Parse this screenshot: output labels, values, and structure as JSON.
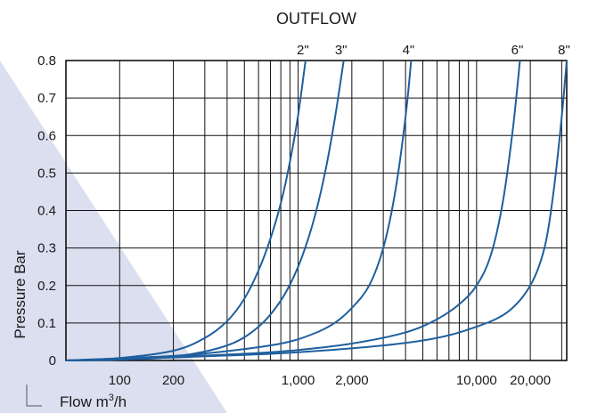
{
  "chart_data": {
    "type": "line",
    "title": "OUTFLOW",
    "ylabel": "Pressure Bar",
    "xlabel_prefix": "Flow  m",
    "xlabel_sup": "3",
    "xlabel_suffix": "/h",
    "x_scale": "log",
    "ylim": [
      0,
      0.8
    ],
    "grid": true,
    "y_ticks": [
      {
        "value": 0,
        "label": "0"
      },
      {
        "value": 0.1,
        "label": "0.1"
      },
      {
        "value": 0.2,
        "label": "0.2"
      },
      {
        "value": 0.3,
        "label": "0.3"
      },
      {
        "value": 0.4,
        "label": "0.4"
      },
      {
        "value": 0.5,
        "label": "0.5"
      },
      {
        "value": 0.6,
        "label": "0.6"
      },
      {
        "value": 0.7,
        "label": "0.7"
      },
      {
        "value": 0.8,
        "label": "0.8"
      }
    ],
    "x_ticks": [
      {
        "value": 100,
        "label": "100"
      },
      {
        "value": 200,
        "label": "200"
      },
      {
        "value": 1000,
        "label": "1,000"
      },
      {
        "value": 2000,
        "label": "2,000"
      },
      {
        "value": 10000,
        "label": "10,000"
      },
      {
        "value": 20000,
        "label": "20,000"
      }
    ],
    "x_gridlines": [
      100,
      200,
      300,
      400,
      500,
      600,
      700,
      800,
      900,
      1000,
      2000,
      3000,
      4000,
      5000,
      6000,
      7000,
      8000,
      9000,
      10000,
      20000,
      30000
    ],
    "line_color": "#1f5f9e",
    "series": [
      {
        "name": "2\"",
        "points": [
          [
            50,
            0
          ],
          [
            100,
            0.0066
          ],
          [
            200,
            0.026
          ],
          [
            300,
            0.06
          ],
          [
            400,
            0.105
          ],
          [
            500,
            0.165
          ],
          [
            600,
            0.24
          ],
          [
            700,
            0.325
          ],
          [
            800,
            0.42
          ],
          [
            900,
            0.53
          ],
          [
            1000,
            0.655
          ],
          [
            1100,
            0.8
          ]
        ]
      },
      {
        "name": "3\"",
        "points": [
          [
            50,
            0
          ],
          [
            100,
            0.0024
          ],
          [
            200,
            0.0098
          ],
          [
            400,
            0.04
          ],
          [
            600,
            0.09
          ],
          [
            800,
            0.16
          ],
          [
            1000,
            0.25
          ],
          [
            1200,
            0.36
          ],
          [
            1400,
            0.49
          ],
          [
            1600,
            0.64
          ],
          [
            1800,
            0.8
          ]
        ]
      },
      {
        "name": "4\"",
        "points": [
          [
            50,
            0
          ],
          [
            200,
            0.012
          ],
          [
            400,
            0.025
          ],
          [
            800,
            0.045
          ],
          [
            1200,
            0.07
          ],
          [
            1600,
            0.1
          ],
          [
            2000,
            0.14
          ],
          [
            2500,
            0.2
          ],
          [
            3000,
            0.3
          ],
          [
            3500,
            0.45
          ],
          [
            4000,
            0.65
          ],
          [
            4300,
            0.8
          ]
        ]
      },
      {
        "name": "6\"",
        "points": [
          [
            50,
            0
          ],
          [
            200,
            0.01
          ],
          [
            500,
            0.018
          ],
          [
            1000,
            0.028
          ],
          [
            2000,
            0.045
          ],
          [
            4000,
            0.075
          ],
          [
            6000,
            0.11
          ],
          [
            8000,
            0.15
          ],
          [
            10000,
            0.2
          ],
          [
            12000,
            0.28
          ],
          [
            14000,
            0.42
          ],
          [
            16000,
            0.62
          ],
          [
            17500,
            0.8
          ]
        ]
      },
      {
        "name": "8\"",
        "points": [
          [
            50,
            0
          ],
          [
            200,
            0.008
          ],
          [
            500,
            0.015
          ],
          [
            1000,
            0.022
          ],
          [
            3000,
            0.04
          ],
          [
            6000,
            0.06
          ],
          [
            10000,
            0.09
          ],
          [
            15000,
            0.13
          ],
          [
            20000,
            0.2
          ],
          [
            24000,
            0.3
          ],
          [
            27000,
            0.45
          ],
          [
            30000,
            0.65
          ],
          [
            32000,
            0.8
          ]
        ]
      }
    ]
  }
}
